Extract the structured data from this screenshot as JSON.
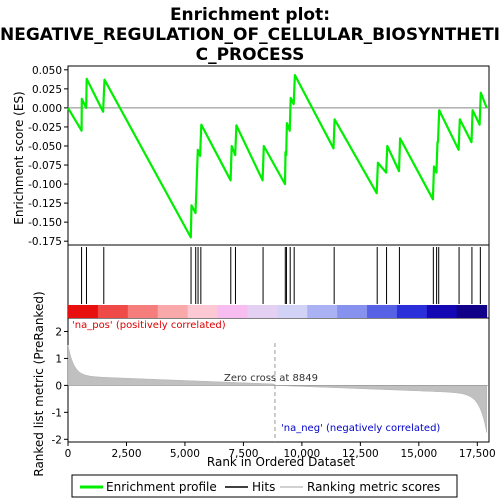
{
  "chart_data": {
    "type": "line",
    "title_line1": "Enrichment plot:",
    "title_line2": "NEGATIVE_REGULATION_OF_CELLULAR_BIOSYNTHETI",
    "title_line3": "C_PROCESS",
    "ylabel_top": "Enrichment score (ES)",
    "ylabel_bottom": "Ranked list metric (PreRanked)",
    "xlabel": "Rank in Ordered Dataset",
    "es_yticks": [
      "0.050",
      "0.025",
      "0.000",
      "-0.025",
      "-0.050",
      "-0.075",
      "-0.100",
      "-0.125",
      "-0.150",
      "-0.175"
    ],
    "es_ylim": [
      -0.18,
      0.055
    ],
    "metric_yticks": [
      "2",
      "1",
      "0",
      "-1",
      "-2"
    ],
    "metric_ylim": [
      -2.1,
      2.5
    ],
    "xticks": [
      "0",
      "2,500",
      "5,000",
      "7,500",
      "10,000",
      "12,500",
      "15,000",
      "17,500"
    ],
    "xlim": [
      0,
      18000
    ],
    "n_genes": 17900,
    "zero_cross_rank": 8849,
    "zero_cross_label": "Zero cross at 8849",
    "pos_label": "'na_pos' (positively correlated)",
    "neg_label": "'na_neg' (negatively correlated)",
    "es_points": [
      [
        0,
        0.0
      ],
      [
        580,
        -0.03
      ],
      [
        590,
        0.012
      ],
      [
        780,
        0.0
      ],
      [
        800,
        0.038
      ],
      [
        1500,
        -0.005
      ],
      [
        1560,
        0.037
      ],
      [
        5250,
        -0.17
      ],
      [
        5280,
        -0.128
      ],
      [
        5450,
        -0.138
      ],
      [
        5500,
        -0.1
      ],
      [
        5550,
        -0.055
      ],
      [
        5650,
        -0.063
      ],
      [
        5700,
        -0.022
      ],
      [
        6950,
        -0.095
      ],
      [
        7000,
        -0.05
      ],
      [
        7150,
        -0.062
      ],
      [
        7200,
        -0.023
      ],
      [
        8320,
        -0.095
      ],
      [
        8370,
        -0.05
      ],
      [
        9280,
        -0.1
      ],
      [
        9300,
        -0.058
      ],
      [
        9330,
        -0.062
      ],
      [
        9360,
        -0.02
      ],
      [
        9480,
        -0.03
      ],
      [
        9520,
        0.013
      ],
      [
        9650,
        0.005
      ],
      [
        9700,
        0.043
      ],
      [
        11350,
        -0.053
      ],
      [
        11400,
        -0.015
      ],
      [
        13200,
        -0.112
      ],
      [
        13250,
        -0.072
      ],
      [
        13600,
        -0.085
      ],
      [
        13650,
        -0.05
      ],
      [
        14150,
        -0.083
      ],
      [
        14200,
        -0.04
      ],
      [
        15600,
        -0.12
      ],
      [
        15650,
        -0.077
      ],
      [
        15750,
        -0.085
      ],
      [
        15800,
        -0.045
      ],
      [
        15820,
        -0.045
      ],
      [
        15870,
        -0.003
      ],
      [
        16700,
        -0.055
      ],
      [
        16750,
        -0.015
      ],
      [
        17250,
        -0.045
      ],
      [
        17300,
        -0.003
      ],
      [
        17600,
        -0.022
      ],
      [
        17650,
        0.02
      ],
      [
        17900,
        0.0
      ]
    ],
    "hit_ranks": [
      580,
      790,
      1530,
      5260,
      5460,
      5560,
      5680,
      6960,
      7160,
      8340,
      9290,
      9340,
      9500,
      9670,
      11380,
      13220,
      13620,
      14170,
      15620,
      15760,
      15850,
      16720,
      17270,
      17630
    ],
    "band_colors": [
      "#e8100f",
      "#f04a48",
      "#f57d7c",
      "#f9a9a9",
      "#fbc8d4",
      "#f8bdf0",
      "#e3d0f2",
      "#d2d2f6",
      "#aab2f3",
      "#8792ef",
      "#5661e6",
      "#2b2fd9",
      "#1408b4",
      "#110088"
    ],
    "curve_color": "#00ee00",
    "legend": [
      "Enrichment profile",
      "Hits",
      "Ranking metric scores"
    ]
  }
}
